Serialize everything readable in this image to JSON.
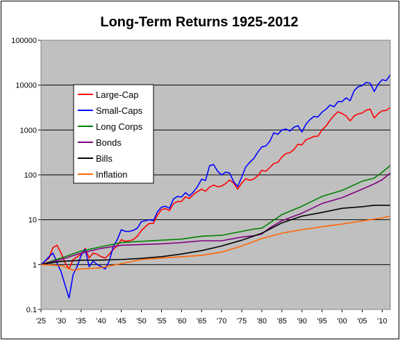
{
  "chart_data": {
    "type": "line",
    "title": "Long-Term Returns 1925-2012",
    "xlabel": "",
    "ylabel": "",
    "y_scale": "log",
    "ylim": [
      0.1,
      100000
    ],
    "xlim": [
      1925,
      2012
    ],
    "grid": "horizontal",
    "legend_position": "upper-left",
    "plot_background": "#c0c0c0",
    "y_ticks": [
      {
        "value": 0.1,
        "label": "0.1"
      },
      {
        "value": 1,
        "label": "1"
      },
      {
        "value": 10,
        "label": "10"
      },
      {
        "value": 100,
        "label": "100"
      },
      {
        "value": 1000,
        "label": "1000"
      },
      {
        "value": 10000,
        "label": "10000"
      },
      {
        "value": 100000,
        "label": "100000"
      }
    ],
    "x_ticks": [
      {
        "value": 1925,
        "label": "'25"
      },
      {
        "value": 1930,
        "label": "'30"
      },
      {
        "value": 1935,
        "label": "'35"
      },
      {
        "value": 1940,
        "label": "'40"
      },
      {
        "value": 1945,
        "label": "'45"
      },
      {
        "value": 1950,
        "label": "'50"
      },
      {
        "value": 1955,
        "label": "'55"
      },
      {
        "value": 1960,
        "label": "'60"
      },
      {
        "value": 1965,
        "label": "'65"
      },
      {
        "value": 1970,
        "label": "'70"
      },
      {
        "value": 1975,
        "label": "'75"
      },
      {
        "value": 1980,
        "label": "'80"
      },
      {
        "value": 1985,
        "label": "'85"
      },
      {
        "value": 1990,
        "label": "'90"
      },
      {
        "value": 1995,
        "label": "'95"
      },
      {
        "value": 2000,
        "label": "'00"
      },
      {
        "value": 2005,
        "label": "'05"
      },
      {
        "value": 2010,
        "label": "'10"
      }
    ],
    "series": [
      {
        "name": "Large-Cap",
        "color": "#ff0000",
        "points": [
          [
            1925,
            1
          ],
          [
            1927,
            1.4
          ],
          [
            1928,
            2.4
          ],
          [
            1929,
            2.7
          ],
          [
            1930,
            1.8
          ],
          [
            1931,
            1.1
          ],
          [
            1932,
            0.8
          ],
          [
            1933,
            1.3
          ],
          [
            1935,
            1.7
          ],
          [
            1936,
            2.3
          ],
          [
            1937,
            1.4
          ],
          [
            1938,
            1.8
          ],
          [
            1939,
            1.7
          ],
          [
            1940,
            1.5
          ],
          [
            1941,
            1.4
          ],
          [
            1942,
            1.7
          ],
          [
            1943,
            2.2
          ],
          [
            1944,
            2.6
          ],
          [
            1945,
            3.6
          ],
          [
            1946,
            3.3
          ],
          [
            1947,
            3.4
          ],
          [
            1948,
            3.6
          ],
          [
            1949,
            4.3
          ],
          [
            1950,
            5.7
          ],
          [
            1951,
            7
          ],
          [
            1952,
            8.3
          ],
          [
            1953,
            8.3
          ],
          [
            1954,
            12.7
          ],
          [
            1955,
            16.7
          ],
          [
            1956,
            17.8
          ],
          [
            1957,
            15.9
          ],
          [
            1958,
            22.7
          ],
          [
            1959,
            25.5
          ],
          [
            1960,
            25.6
          ],
          [
            1961,
            32.5
          ],
          [
            1962,
            29.7
          ],
          [
            1963,
            36.5
          ],
          [
            1964,
            42.5
          ],
          [
            1965,
            47.8
          ],
          [
            1966,
            43
          ],
          [
            1967,
            53.3
          ],
          [
            1968,
            59.2
          ],
          [
            1969,
            54.2
          ],
          [
            1970,
            56.4
          ],
          [
            1971,
            64.4
          ],
          [
            1972,
            76.6
          ],
          [
            1973,
            65.4
          ],
          [
            1974,
            48.1
          ],
          [
            1975,
            66
          ],
          [
            1976,
            81.6
          ],
          [
            1977,
            75.8
          ],
          [
            1978,
            80.7
          ],
          [
            1979,
            95.6
          ],
          [
            1980,
            126.6
          ],
          [
            1981,
            120.3
          ],
          [
            1982,
            146
          ],
          [
            1983,
            179
          ],
          [
            1984,
            190
          ],
          [
            1985,
            250
          ],
          [
            1986,
            297
          ],
          [
            1987,
            312
          ],
          [
            1988,
            364
          ],
          [
            1989,
            480
          ],
          [
            1990,
            465
          ],
          [
            1991,
            607
          ],
          [
            1992,
            653
          ],
          [
            1993,
            719
          ],
          [
            1994,
            728
          ],
          [
            1995,
            1002
          ],
          [
            1996,
            1232
          ],
          [
            1997,
            1643
          ],
          [
            1998,
            2113
          ],
          [
            1999,
            2557
          ],
          [
            2000,
            2325
          ],
          [
            2001,
            2048
          ],
          [
            2002,
            1596
          ],
          [
            2003,
            2053
          ],
          [
            2004,
            2277
          ],
          [
            2005,
            2389
          ],
          [
            2006,
            2766
          ],
          [
            2007,
            2918
          ],
          [
            2008,
            1838
          ],
          [
            2009,
            2325
          ],
          [
            2010,
            2675
          ],
          [
            2011,
            2731
          ],
          [
            2012,
            3168
          ]
        ]
      },
      {
        "name": "Small-Caps",
        "color": "#0000ff",
        "points": [
          [
            1925,
            1
          ],
          [
            1926,
            1.2
          ],
          [
            1927,
            1.5
          ],
          [
            1928,
            1.8
          ],
          [
            1929,
            1.1
          ],
          [
            1930,
            0.7
          ],
          [
            1931,
            0.35
          ],
          [
            1932,
            0.18
          ],
          [
            1933,
            0.6
          ],
          [
            1934,
            0.9
          ],
          [
            1935,
            1.6
          ],
          [
            1936,
            2.2
          ],
          [
            1937,
            0.9
          ],
          [
            1938,
            1.2
          ],
          [
            1939,
            1
          ],
          [
            1940,
            0.9
          ],
          [
            1941,
            0.8
          ],
          [
            1942,
            1.2
          ],
          [
            1943,
            2.5
          ],
          [
            1944,
            3.6
          ],
          [
            1945,
            6
          ],
          [
            1946,
            5.5
          ],
          [
            1947,
            5.5
          ],
          [
            1948,
            5.8
          ],
          [
            1949,
            6.5
          ],
          [
            1950,
            9
          ],
          [
            1951,
            9.5
          ],
          [
            1952,
            10
          ],
          [
            1953,
            9.5
          ],
          [
            1954,
            15
          ],
          [
            1955,
            19
          ],
          [
            1956,
            20
          ],
          [
            1957,
            18
          ],
          [
            1958,
            29
          ],
          [
            1959,
            33
          ],
          [
            1960,
            32
          ],
          [
            1961,
            40
          ],
          [
            1962,
            34
          ],
          [
            1963,
            42
          ],
          [
            1964,
            55
          ],
          [
            1965,
            80
          ],
          [
            1966,
            75
          ],
          [
            1967,
            160
          ],
          [
            1968,
            170
          ],
          [
            1969,
            120
          ],
          [
            1970,
            100
          ],
          [
            1971,
            115
          ],
          [
            1972,
            110
          ],
          [
            1973,
            70
          ],
          [
            1974,
            55
          ],
          [
            1975,
            90
          ],
          [
            1976,
            150
          ],
          [
            1977,
            190
          ],
          [
            1978,
            230
          ],
          [
            1979,
            320
          ],
          [
            1980,
            420
          ],
          [
            1981,
            440
          ],
          [
            1982,
            560
          ],
          [
            1983,
            870
          ],
          [
            1984,
            800
          ],
          [
            1985,
            1000
          ],
          [
            1986,
            1050
          ],
          [
            1987,
            950
          ],
          [
            1988,
            1150
          ],
          [
            1989,
            1250
          ],
          [
            1990,
            900
          ],
          [
            1991,
            1350
          ],
          [
            1992,
            1700
          ],
          [
            1993,
            2000
          ],
          [
            1994,
            1950
          ],
          [
            1995,
            2500
          ],
          [
            1996,
            2900
          ],
          [
            1997,
            3600
          ],
          [
            1998,
            3300
          ],
          [
            1999,
            4300
          ],
          [
            2000,
            4300
          ],
          [
            2001,
            5200
          ],
          [
            2002,
            4500
          ],
          [
            2003,
            7500
          ],
          [
            2004,
            9200
          ],
          [
            2005,
            9700
          ],
          [
            2006,
            11500
          ],
          [
            2007,
            11000
          ],
          [
            2008,
            7200
          ],
          [
            2009,
            10500
          ],
          [
            2010,
            13200
          ],
          [
            2011,
            12600
          ],
          [
            2012,
            17000
          ]
        ]
      },
      {
        "name": "Long Corps",
        "color": "#008000",
        "points": [
          [
            1925,
            1
          ],
          [
            1930,
            1.4
          ],
          [
            1935,
            2
          ],
          [
            1940,
            2.5
          ],
          [
            1945,
            3.1
          ],
          [
            1950,
            3.3
          ],
          [
            1955,
            3.5
          ],
          [
            1960,
            3.7
          ],
          [
            1965,
            4.3
          ],
          [
            1970,
            4.5
          ],
          [
            1975,
            5.5
          ],
          [
            1978,
            6.2
          ],
          [
            1980,
            6.5
          ],
          [
            1982,
            8.5
          ],
          [
            1985,
            13
          ],
          [
            1990,
            20
          ],
          [
            1995,
            33
          ],
          [
            2000,
            45
          ],
          [
            2005,
            72
          ],
          [
            2008,
            85
          ],
          [
            2010,
            115
          ],
          [
            2012,
            160
          ]
        ]
      },
      {
        "name": "Bonds",
        "color": "#800080",
        "points": [
          [
            1925,
            1
          ],
          [
            1930,
            1.3
          ],
          [
            1935,
            1.8
          ],
          [
            1940,
            2.3
          ],
          [
            1945,
            2.7
          ],
          [
            1950,
            2.8
          ],
          [
            1955,
            2.9
          ],
          [
            1960,
            3.1
          ],
          [
            1965,
            3.4
          ],
          [
            1970,
            3.4
          ],
          [
            1975,
            4.1
          ],
          [
            1978,
            4.4
          ],
          [
            1980,
            4.8
          ],
          [
            1982,
            6.6
          ],
          [
            1985,
            9.5
          ],
          [
            1990,
            14
          ],
          [
            1995,
            23
          ],
          [
            2000,
            31
          ],
          [
            2005,
            48
          ],
          [
            2008,
            63
          ],
          [
            2010,
            78
          ],
          [
            2012,
            110
          ]
        ]
      },
      {
        "name": "Bills",
        "color": "#000000",
        "points": [
          [
            1925,
            1
          ],
          [
            1930,
            1.18
          ],
          [
            1935,
            1.25
          ],
          [
            1940,
            1.26
          ],
          [
            1945,
            1.3
          ],
          [
            1950,
            1.38
          ],
          [
            1955,
            1.5
          ],
          [
            1960,
            1.72
          ],
          [
            1965,
            2.05
          ],
          [
            1970,
            2.6
          ],
          [
            1975,
            3.5
          ],
          [
            1980,
            5
          ],
          [
            1985,
            8.5
          ],
          [
            1990,
            12
          ],
          [
            1995,
            14.5
          ],
          [
            2000,
            18
          ],
          [
            2005,
            19.5
          ],
          [
            2008,
            21
          ],
          [
            2010,
            21
          ],
          [
            2012,
            21
          ]
        ]
      },
      {
        "name": "Inflation",
        "color": "#ff6600",
        "points": [
          [
            1925,
            1
          ],
          [
            1930,
            0.95
          ],
          [
            1933,
            0.75
          ],
          [
            1935,
            0.8
          ],
          [
            1940,
            0.85
          ],
          [
            1945,
            1.05
          ],
          [
            1950,
            1.3
          ],
          [
            1955,
            1.4
          ],
          [
            1960,
            1.5
          ],
          [
            1965,
            1.6
          ],
          [
            1970,
            1.9
          ],
          [
            1975,
            2.6
          ],
          [
            1980,
            3.8
          ],
          [
            1985,
            5
          ],
          [
            1990,
            6
          ],
          [
            1995,
            7
          ],
          [
            2000,
            8
          ],
          [
            2005,
            9.4
          ],
          [
            2010,
            11
          ],
          [
            2012,
            12
          ]
        ]
      }
    ]
  }
}
